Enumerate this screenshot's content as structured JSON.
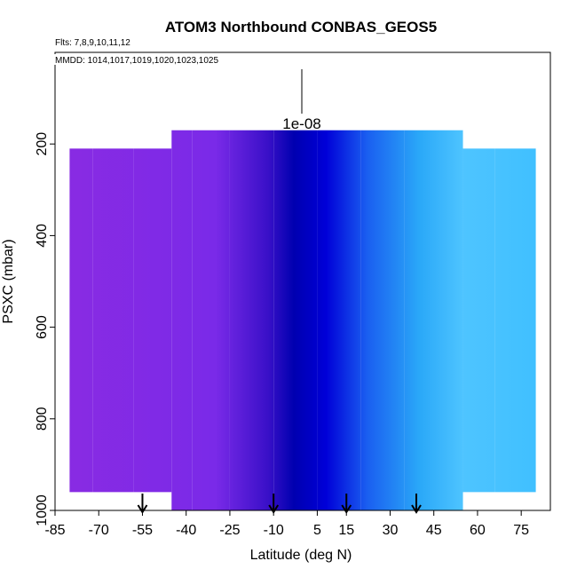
{
  "chart_data": {
    "type": "heatmap",
    "title": "ATOM3 Northbound CONBAS_GEOS5",
    "flights_note": "Flts: 7,8,9,10,11,12",
    "dates_note": "MMDD: 1014,1017,1019,1020,1023,1025",
    "scale_label": "1e-08",
    "xlabel": "Latitude (deg N)",
    "ylabel": "PSXC (mbar)",
    "xlim": [
      -85,
      85
    ],
    "ylim": [
      1000,
      0
    ],
    "x_ticks": [
      -85,
      -70,
      -55,
      -40,
      -25,
      -10,
      5,
      15,
      30,
      45,
      60,
      75
    ],
    "y_ticks": [
      200,
      400,
      600,
      800,
      1000
    ],
    "x_tick_labels": [
      "-85",
      "-70",
      "-55",
      "-40",
      "-25",
      "-10",
      "5",
      "15",
      "30",
      "45",
      "60",
      "75"
    ],
    "y_tick_labels": [
      "200",
      "400",
      "600",
      "800",
      "1000"
    ],
    "arrow_latitudes": [
      -55,
      -10,
      15,
      39
    ],
    "color_stops": [
      {
        "lat": -85,
        "color": "#8a2be2"
      },
      {
        "lat": -30,
        "color": "#7a2ae8"
      },
      {
        "lat": -12,
        "color": "#3a10c8"
      },
      {
        "lat": -3,
        "color": "#0000b0"
      },
      {
        "lat": 8,
        "color": "#0000d8"
      },
      {
        "lat": 22,
        "color": "#1a5ef0"
      },
      {
        "lat": 40,
        "color": "#2aa8f8"
      },
      {
        "lat": 55,
        "color": "#4ec4ff"
      },
      {
        "lat": 80,
        "color": "#40c0ff"
      }
    ],
    "bands": [
      {
        "lat_min": -80,
        "lat_max": -72,
        "p_top": 210,
        "p_bottom": 960
      },
      {
        "lat_min": -72,
        "lat_max": -58,
        "p_top": 210,
        "p_bottom": 960
      },
      {
        "lat_min": -58,
        "lat_max": -45,
        "p_top": 210,
        "p_bottom": 960
      },
      {
        "lat_min": -45,
        "lat_max": -38,
        "p_top": 170,
        "p_bottom": 1010
      },
      {
        "lat_min": -38,
        "lat_max": -25,
        "p_top": 170,
        "p_bottom": 1010
      },
      {
        "lat_min": -25,
        "lat_max": -10,
        "p_top": 170,
        "p_bottom": 1010
      },
      {
        "lat_min": -10,
        "lat_max": 5,
        "p_top": 170,
        "p_bottom": 1010
      },
      {
        "lat_min": 5,
        "lat_max": 20,
        "p_top": 170,
        "p_bottom": 1010
      },
      {
        "lat_min": 20,
        "lat_max": 35,
        "p_top": 170,
        "p_bottom": 1010
      },
      {
        "lat_min": 35,
        "lat_max": 55,
        "p_top": 170,
        "p_bottom": 1010
      },
      {
        "lat_min": 55,
        "lat_max": 66,
        "p_top": 210,
        "p_bottom": 960
      },
      {
        "lat_min": 66,
        "lat_max": 80,
        "p_top": 210,
        "p_bottom": 960
      }
    ]
  }
}
